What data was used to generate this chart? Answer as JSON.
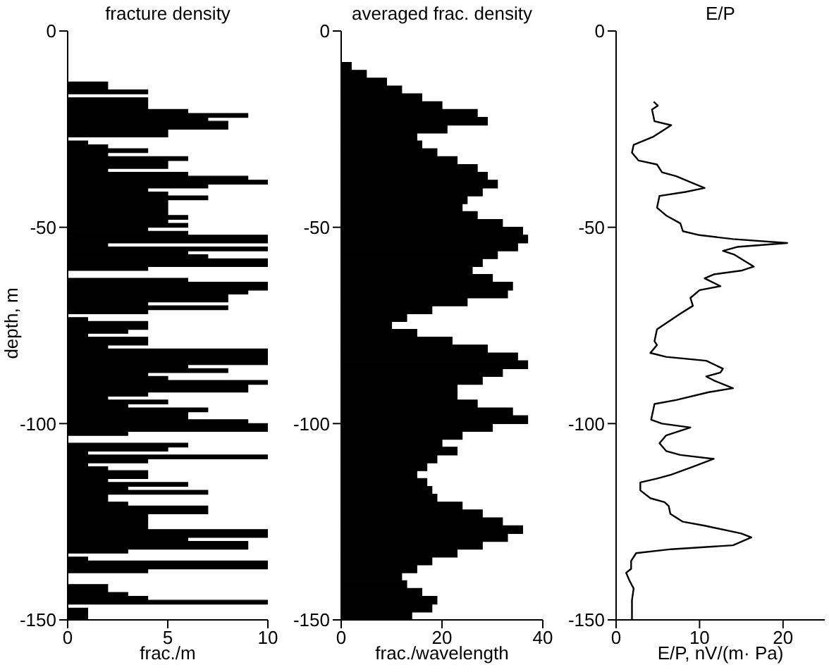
{
  "chart_data": [
    {
      "type": "histogram",
      "orientation": "horizontal",
      "title": "fracture density",
      "xlabel": "frac./m",
      "ylabel": "depth, m",
      "color": "#000000",
      "xlim": [
        0,
        10
      ],
      "xticks": [
        0,
        5,
        10
      ],
      "ylim": [
        -150,
        0
      ],
      "yticks": [
        -150,
        -100,
        -50,
        0
      ],
      "bins": [
        -150,
        -147,
        -146,
        -145,
        -144,
        -143,
        -141,
        -138,
        -137,
        -135,
        -134,
        -133,
        -132,
        -130,
        -129,
        -127,
        -123,
        -121,
        -120,
        -118,
        -117,
        -116,
        -115,
        -114,
        -112,
        -111,
        -110,
        -109,
        -108,
        -107,
        -106,
        -105,
        -103,
        -102,
        -100,
        -99,
        -97,
        -96,
        -95,
        -94,
        -93,
        -92,
        -90,
        -89,
        -88,
        -87,
        -86,
        -85,
        -81,
        -80,
        -78,
        -77,
        -76,
        -74,
        -73,
        -72,
        -71,
        -70,
        -69,
        -67,
        -66,
        -64,
        -63,
        -61,
        -60,
        -58,
        -57,
        -56,
        -55,
        -54,
        -52,
        -51,
        -50,
        -49,
        -48,
        -47,
        -43,
        -42,
        -41,
        -40,
        -39,
        -38,
        -37,
        -36,
        -35,
        -33,
        -32,
        -31,
        -30,
        -29,
        -28,
        -27,
        -25,
        -23,
        -22,
        -21,
        -20,
        -17,
        -16,
        -15,
        -13
      ],
      "values": [
        1,
        0,
        10,
        4,
        3,
        2,
        0,
        4,
        10,
        1,
        0,
        3,
        9,
        6,
        10,
        4,
        7,
        3,
        2,
        7,
        3,
        6,
        2,
        4,
        2,
        1,
        4,
        10,
        1,
        5,
        6,
        0,
        3,
        10,
        9,
        6,
        7,
        3,
        5,
        2,
        4,
        9,
        10,
        5,
        4,
        8,
        6,
        10,
        2,
        4,
        1,
        3,
        4,
        1,
        0,
        4,
        8,
        4,
        8,
        9,
        10,
        6,
        0,
        4,
        10,
        7,
        6,
        10,
        2,
        10,
        6,
        4,
        6,
        5,
        6,
        5,
        7,
        5,
        4,
        7,
        10,
        9,
        6,
        2,
        5,
        6,
        2,
        4,
        2,
        1,
        0,
        5,
        8,
        7,
        9,
        6,
        4,
        0,
        4,
        2
      ]
    },
    {
      "type": "histogram",
      "orientation": "horizontal",
      "title": "averaged frac. density",
      "xlabel": "frac./wavelength",
      "color": "#000000",
      "xlim": [
        0,
        40
      ],
      "xticks": [
        0,
        20,
        40
      ],
      "ylim": [
        -150,
        0
      ],
      "yticks": [
        -150,
        -100,
        -50,
        0
      ],
      "bins": [
        -150,
        -148,
        -146,
        -144,
        -142,
        -140,
        -138,
        -136,
        -134,
        -132,
        -130,
        -128,
        -126,
        -124,
        -122,
        -120,
        -118,
        -116,
        -114,
        -112,
        -110,
        -108,
        -106,
        -104,
        -102,
        -100,
        -98,
        -96,
        -94,
        -92,
        -90,
        -88,
        -86,
        -84,
        -82,
        -80,
        -78,
        -76,
        -74,
        -72,
        -70,
        -68,
        -66,
        -64,
        -62,
        -60,
        -58,
        -56,
        -54,
        -52,
        -50,
        -48,
        -46,
        -44,
        -42,
        -40,
        -38,
        -36,
        -34,
        -32,
        -30,
        -28,
        -26,
        -24,
        -22,
        -20,
        -18,
        -16,
        -14,
        -12,
        -10,
        -8
      ],
      "values": [
        14,
        18,
        19,
        16,
        13,
        12,
        15,
        18,
        23,
        28,
        33,
        36,
        32,
        28,
        24,
        19,
        18,
        17,
        15,
        17,
        19,
        23,
        20,
        24,
        30,
        37,
        34,
        27,
        23,
        23,
        28,
        32,
        37,
        35,
        29,
        22,
        15,
        10,
        13,
        18,
        25,
        33,
        34,
        30,
        26,
        28,
        31,
        35,
        37,
        36,
        32,
        27,
        24,
        25,
        28,
        31,
        29,
        27,
        23,
        19,
        16,
        15,
        21,
        29,
        27,
        20,
        16,
        12,
        9,
        5,
        2
      ]
    },
    {
      "type": "line",
      "orientation": "horizontal",
      "title": "E/P",
      "xlabel": "E/P, nV/(m· Pa)",
      "color": "#000000",
      "xlim": [
        0,
        25
      ],
      "xticks": [
        0,
        10,
        20
      ],
      "ylim": [
        -150,
        0
      ],
      "yticks": [
        -150,
        -100,
        -50,
        0
      ],
      "x": [
        -18,
        -19,
        -20,
        -23,
        -24,
        -27,
        -29,
        -31,
        -33,
        -34,
        -36,
        -37,
        -40,
        -41,
        -42,
        -45,
        -47,
        -49,
        -51,
        -52,
        -53,
        -54,
        -55,
        -56,
        -57,
        -60,
        -61,
        -62,
        -63,
        -65,
        -66,
        -68,
        -70,
        -72,
        -76,
        -79,
        -80,
        -82,
        -83,
        -84,
        -86,
        -87,
        -88,
        -89,
        -91,
        -92,
        -94,
        -95,
        -99,
        -100,
        -101,
        -103,
        -105,
        -107,
        -108,
        -109,
        -111,
        -113,
        -114,
        -115,
        -117,
        -119,
        -120,
        -121,
        -123,
        -125,
        -126,
        -128,
        -129,
        -131,
        -132,
        -133,
        -135,
        -137,
        -138,
        -140,
        -142,
        -145,
        -150
      ],
      "values": [
        4.5,
        5,
        4.3,
        4.6,
        6.6,
        4.4,
        2.1,
        1.9,
        2.7,
        4.9,
        5.5,
        7.2,
        10.6,
        8.3,
        5.2,
        4.9,
        6,
        7.7,
        8,
        10,
        14,
        20.5,
        14.5,
        12.8,
        14.2,
        16.5,
        15.1,
        11.7,
        10.6,
        12.5,
        10,
        8.9,
        9.2,
        7.7,
        4.9,
        4.6,
        4.9,
        4.1,
        6,
        10.8,
        12.8,
        12.5,
        10.8,
        11.7,
        14,
        11.1,
        7.2,
        4.6,
        4.2,
        5.5,
        8.9,
        6,
        5.2,
        6,
        7.7,
        11.7,
        9.2,
        6.6,
        4.9,
        2.9,
        2.9,
        4.1,
        5.8,
        6.3,
        6.5,
        8,
        10.6,
        15,
        16.2,
        14,
        6.6,
        2.4,
        1.8,
        1.8,
        1.2,
        1.6,
        2.1,
        1.9,
        1.9
      ]
    }
  ]
}
